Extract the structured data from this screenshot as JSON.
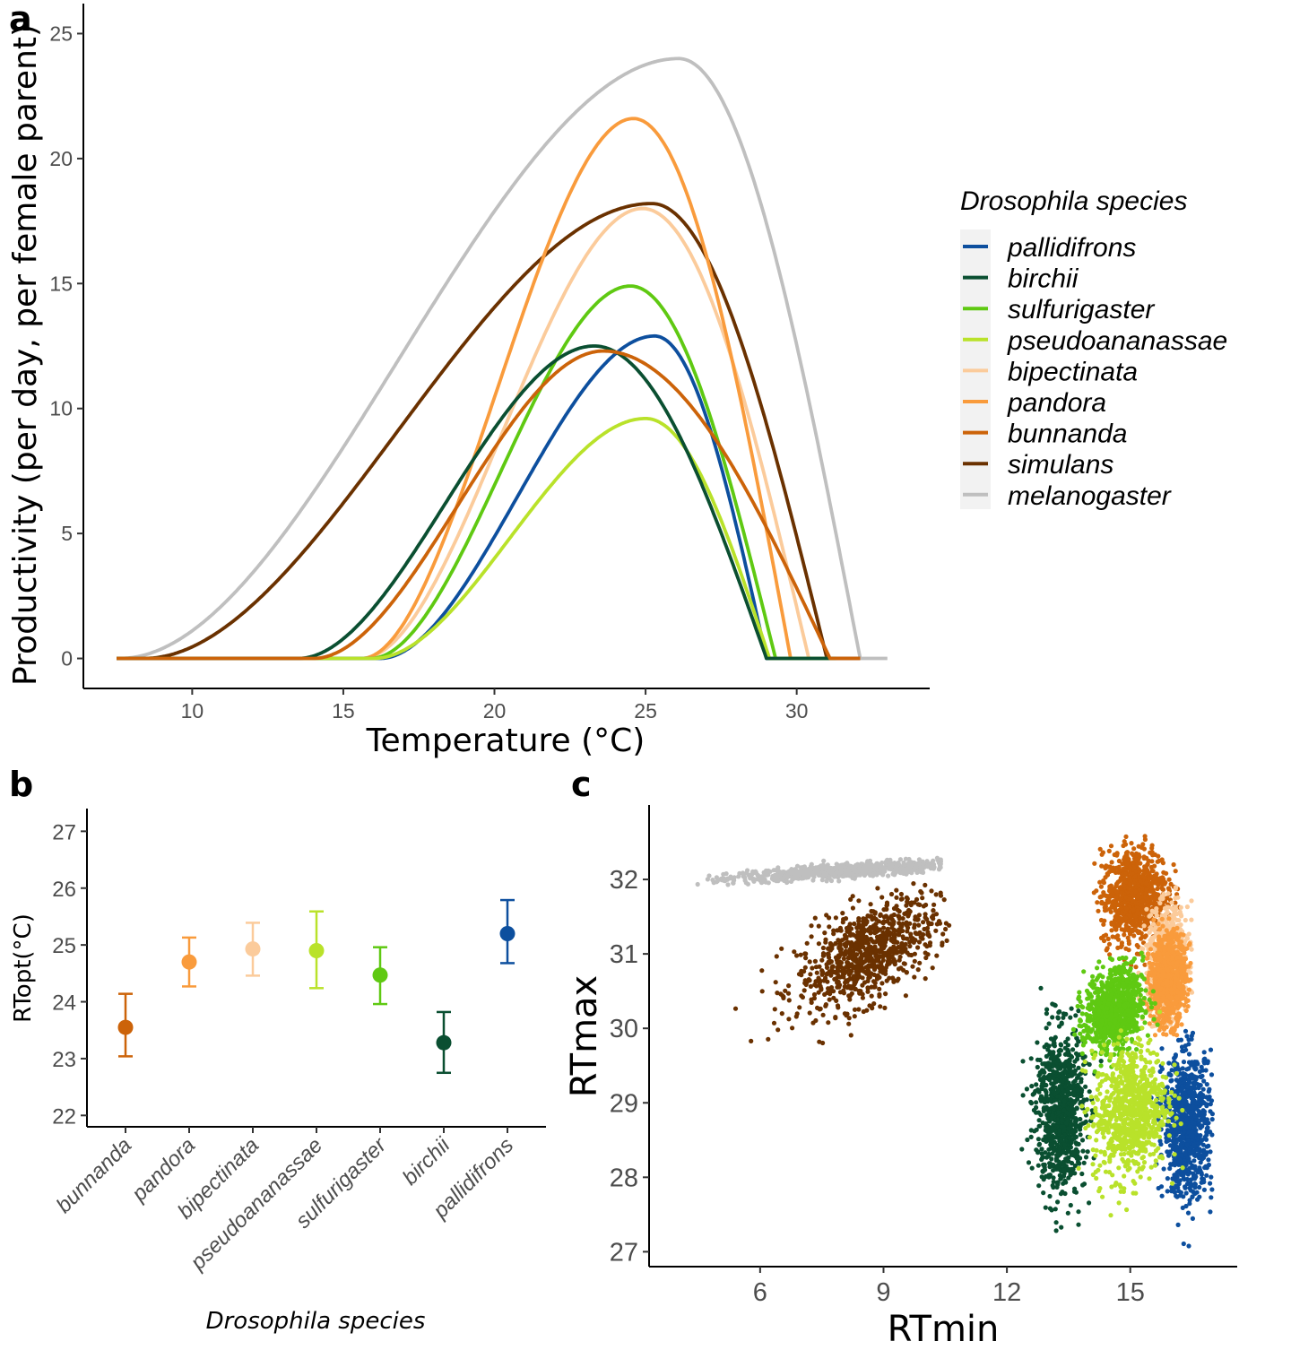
{
  "colors": {
    "pallidifrons": "#0d4f9e",
    "birchii": "#0a4f31",
    "sulfurigaster": "#5fc912",
    "pseudoananassae": "#b9e22a",
    "bipectinata": "#fbcb9b",
    "pandora": "#f99b3c",
    "bunnanda": "#cc6309",
    "simulans": "#6a3100",
    "melanogaster": "#bfbfbf"
  },
  "chart_data": [
    {
      "id": "a",
      "type": "line",
      "panel_label": "a",
      "xlabel": "Temperature (°C)",
      "ylabel": "Productivity (per day, per female parent)",
      "xlim": [
        6.4,
        34.4
      ],
      "ylim": [
        -1.2,
        26.2
      ],
      "xticks": [
        10,
        15,
        20,
        25,
        30
      ],
      "yticks": [
        0,
        5,
        10,
        15,
        20,
        25
      ],
      "legend": {
        "title": "Drosophila species",
        "position": "right",
        "entries": [
          "pallidifrons",
          "birchii",
          "sulfurigaster",
          "pseudoananassae",
          "bipectinata",
          "pandora",
          "bunnanda",
          "simulans",
          "melanogaster"
        ]
      },
      "series": [
        {
          "name": "melanogaster",
          "tmin": 7.6,
          "tpeak": 26.1,
          "tmax": 32.1,
          "peak": 24.0,
          "xrange": [
            7.5,
            33.0
          ]
        },
        {
          "name": "simulans",
          "tmin": 8.4,
          "tpeak": 25.2,
          "tmax": 31.0,
          "peak": 18.2,
          "xrange": [
            7.5,
            32.1
          ]
        },
        {
          "name": "bipectinata",
          "tmin": 15.6,
          "tpeak": 24.9,
          "tmax": 30.4,
          "peak": 18.0,
          "xrange": [
            7.5,
            31.3
          ]
        },
        {
          "name": "pandora",
          "tmin": 15.6,
          "tpeak": 24.6,
          "tmax": 29.8,
          "peak": 21.6,
          "xrange": [
            7.5,
            31.3
          ]
        },
        {
          "name": "sulfurigaster",
          "tmin": 15.9,
          "tpeak": 24.5,
          "tmax": 29.3,
          "peak": 14.9,
          "xrange": [
            7.5,
            31.3
          ]
        },
        {
          "name": "pallidifrons",
          "tmin": 16.2,
          "tpeak": 25.3,
          "tmax": 29.0,
          "peak": 12.9,
          "xrange": [
            7.5,
            31.3
          ]
        },
        {
          "name": "pseudoananassae",
          "tmin": 16.0,
          "tpeak": 25.0,
          "tmax": 29.1,
          "peak": 9.6,
          "xrange": [
            7.5,
            31.3
          ]
        },
        {
          "name": "birchii",
          "tmin": 13.5,
          "tpeak": 23.3,
          "tmax": 29.0,
          "peak": 12.5,
          "xrange": [
            7.5,
            31.3
          ]
        },
        {
          "name": "bunnanda",
          "tmin": 14.0,
          "tpeak": 23.6,
          "tmax": 31.1,
          "peak": 12.3,
          "xrange": [
            7.5,
            32.1
          ]
        }
      ]
    },
    {
      "id": "b",
      "type": "scatter",
      "panel_label": "b",
      "xlabel": "Drosophila species",
      "ylabel": "RTopt(°C)",
      "ylim": [
        21.8,
        27.4
      ],
      "yticks": [
        22,
        23,
        24,
        25,
        26,
        27
      ],
      "categories": [
        "bunnanda",
        "pandora",
        "bipectinata",
        "pseudoananassae",
        "sulfurigaster",
        "birchii",
        "pallidifrons"
      ],
      "values": [
        23.55,
        24.7,
        24.93,
        24.9,
        24.47,
        23.28,
        25.2
      ],
      "lower": [
        23.04,
        24.27,
        24.46,
        24.24,
        23.96,
        22.75,
        24.68
      ],
      "upper": [
        24.14,
        25.13,
        25.39,
        25.59,
        24.96,
        23.82,
        25.79
      ]
    },
    {
      "id": "c",
      "type": "scatter",
      "panel_label": "c",
      "xlabel": "RTmin",
      "ylabel": "RTmax",
      "xlim": [
        3.3,
        17.6
      ],
      "ylim": [
        26.8,
        33.0
      ],
      "xticks": [
        6,
        9,
        12,
        15
      ],
      "yticks": [
        27,
        28,
        29,
        30,
        31,
        32
      ],
      "clouds": [
        {
          "name": "melanogaster",
          "center": [
            8.2,
            32.12
          ],
          "spread": [
            1.5,
            0.07
          ],
          "rho": 0.75,
          "xclip": [
            4.3,
            10.4
          ],
          "yclip": [
            31.93,
            32.47
          ]
        },
        {
          "name": "simulans",
          "center": [
            8.6,
            31.0
          ],
          "spread": [
            0.85,
            0.38
          ],
          "rho": 0.55,
          "xclip": [
            4.3,
            10.8
          ],
          "yclip": [
            29.8,
            31.95
          ]
        },
        {
          "name": "bunnanda",
          "center": [
            15.1,
            31.8
          ],
          "spread": [
            0.4,
            0.32
          ],
          "rho": 0.1,
          "xclip": [
            14.1,
            16.2
          ],
          "yclip": [
            30.7,
            32.68
          ]
        },
        {
          "name": "bipectinata",
          "center": [
            15.9,
            30.9
          ],
          "spread": [
            0.25,
            0.35
          ],
          "rho": 0.1,
          "xclip": [
            15.2,
            16.5
          ],
          "yclip": [
            30.0,
            31.9
          ]
        },
        {
          "name": "pandora",
          "center": [
            15.9,
            30.65
          ],
          "spread": [
            0.22,
            0.3
          ],
          "rho": 0.1,
          "xclip": [
            15.3,
            16.5
          ],
          "yclip": [
            29.9,
            31.5
          ]
        },
        {
          "name": "pallidifrons",
          "center": [
            16.4,
            28.7
          ],
          "spread": [
            0.3,
            0.48
          ],
          "rho": 0.0,
          "xclip": [
            15.5,
            17.0
          ],
          "yclip": [
            27.0,
            30.0
          ]
        },
        {
          "name": "birchii",
          "center": [
            13.3,
            28.9
          ],
          "spread": [
            0.3,
            0.55
          ],
          "rho": 0.0,
          "xclip": [
            11.7,
            14.3
          ],
          "yclip": [
            27.1,
            30.6
          ]
        },
        {
          "name": "sulfurigaster",
          "center": [
            14.6,
            30.25
          ],
          "spread": [
            0.35,
            0.28
          ],
          "rho": 0.2,
          "xclip": [
            13.6,
            15.7
          ],
          "yclip": [
            29.3,
            31.4
          ]
        },
        {
          "name": "pseudoananassae",
          "center": [
            15.0,
            28.9
          ],
          "spread": [
            0.45,
            0.45
          ],
          "rho": 0.15,
          "xclip": [
            13.7,
            16.3
          ],
          "yclip": [
            27.1,
            30.3
          ]
        }
      ]
    }
  ]
}
